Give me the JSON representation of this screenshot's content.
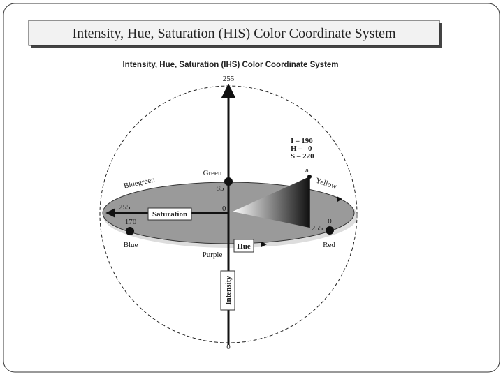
{
  "slide": {
    "title": "Intensity, Hue, Saturation (HIS) Color Coordinate System"
  },
  "figure": {
    "title": "Intensity, Hue, Saturation (IHS) Color Coordinate System",
    "intensity_axis": {
      "label": "Intensity",
      "top": "255",
      "bottom": "0"
    },
    "saturation_axis": {
      "label": "Saturation",
      "outer": "255",
      "center": "0"
    },
    "hue": {
      "label": "Hue",
      "green": "Green",
      "green_value": "85",
      "bluegreen": "Bluegreen",
      "yellow": "Yellow",
      "blue": "Blue",
      "blue_value": "170",
      "purple": "Purple",
      "red": "Red",
      "red_value": "0",
      "red_saturation": "255"
    },
    "point": {
      "name": "a",
      "i": "I – 190",
      "h": "H –   0",
      "s": "S – 220"
    }
  }
}
